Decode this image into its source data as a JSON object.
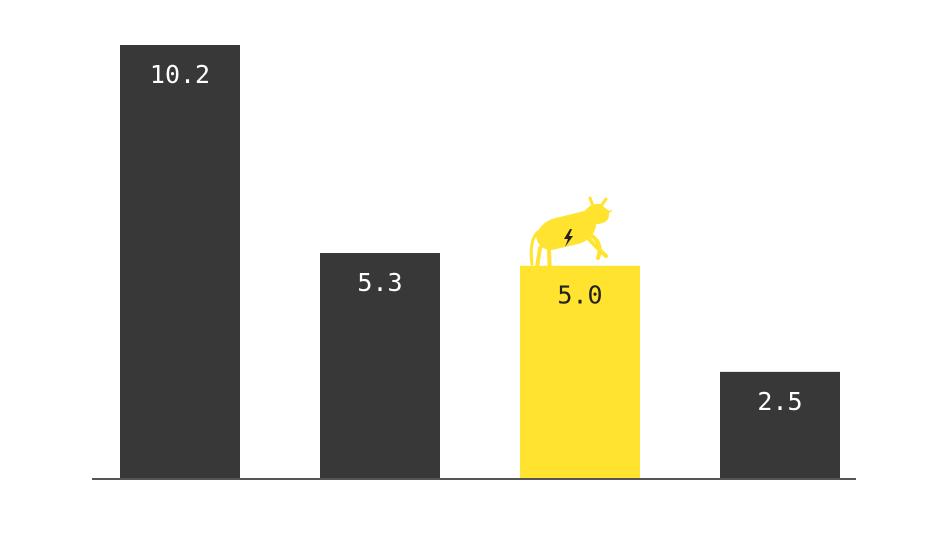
{
  "chart_data": {
    "type": "bar",
    "categories": [
      "",
      "",
      "",
      ""
    ],
    "values": [
      10.2,
      5.3,
      5.0,
      2.5
    ],
    "labels": [
      "10.2",
      "5.3",
      "5.0",
      "2.5"
    ],
    "highlight_index": 2,
    "colors": {
      "bar": "#383838",
      "highlight": "#ffe32e",
      "label_on_dark": "#ffffff",
      "label_on_highlight": "#222222",
      "axis": "#555555",
      "mascot": "#ffe32e",
      "mascot_bolt": "#222222"
    },
    "ylim": [
      0,
      10.2
    ],
    "grid": false,
    "legend": "none",
    "title": "",
    "xlabel": "",
    "ylabel": "",
    "annotation_icon": "cow-icon"
  }
}
